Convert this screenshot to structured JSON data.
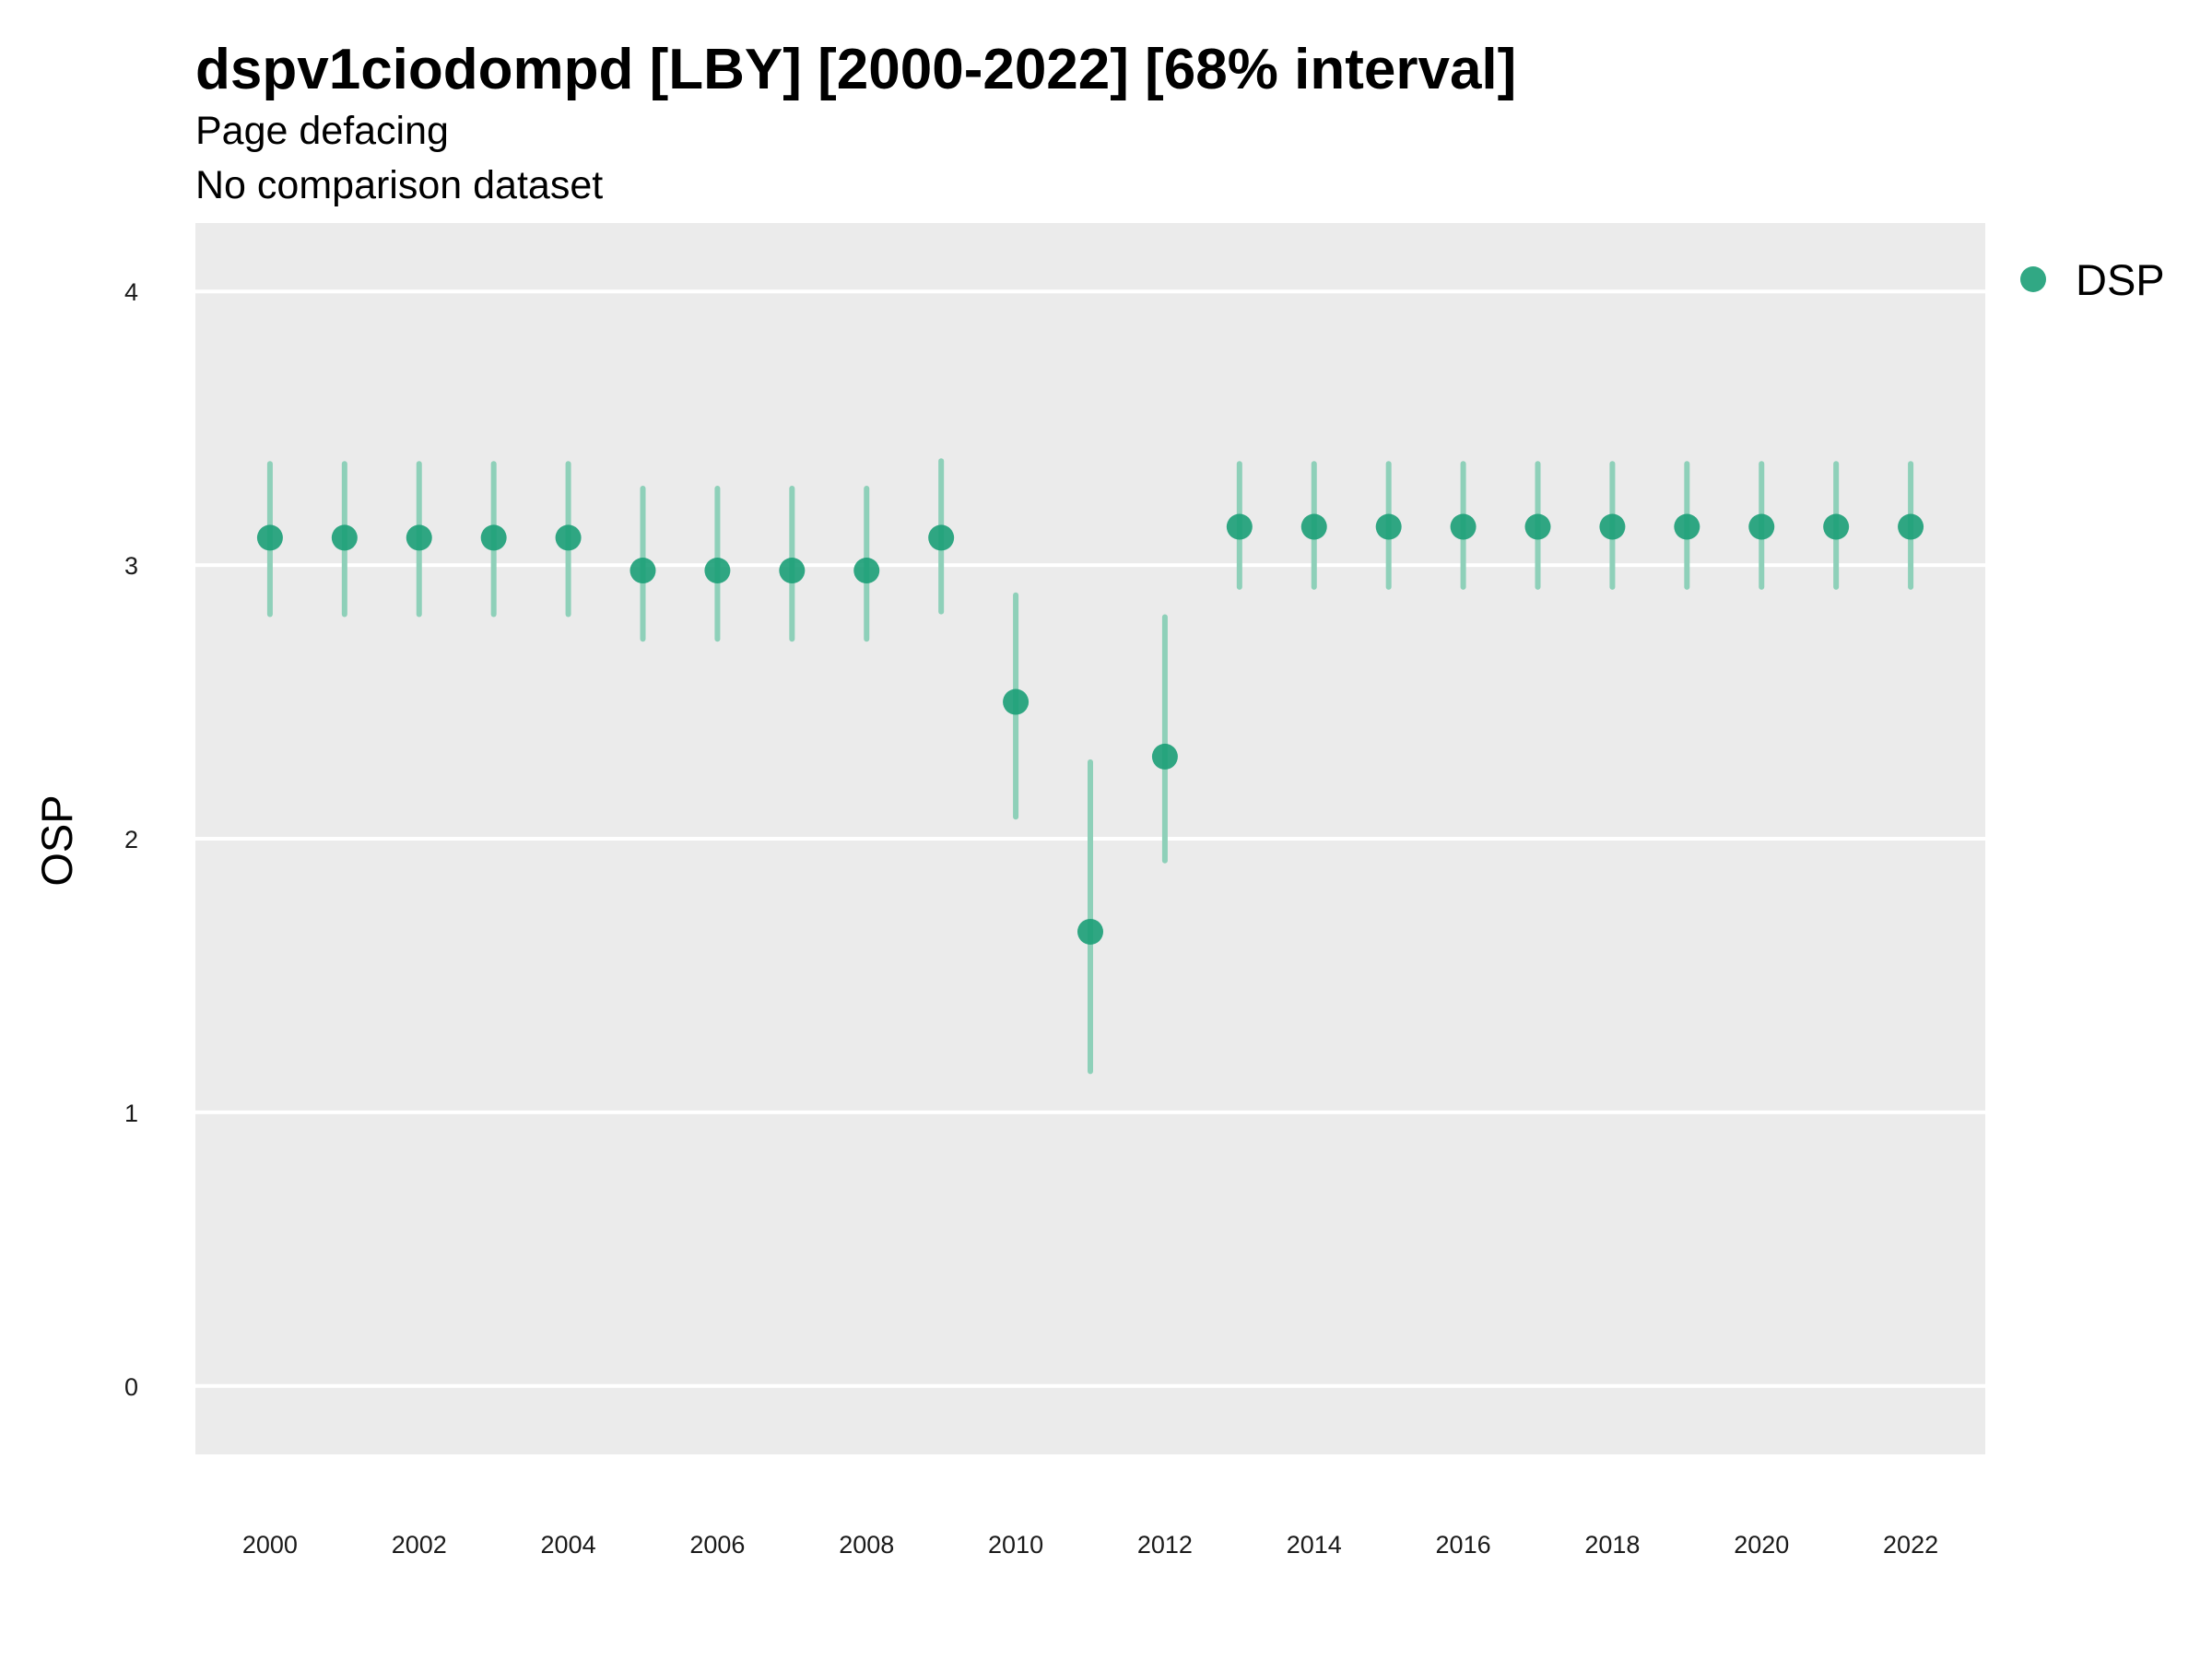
{
  "chart_data": {
    "type": "scatter",
    "title": "dspv1ciodompd [LBY] [2000-2022] [68% interval]",
    "subtitles": [
      "Page defacing",
      "No comparison dataset"
    ],
    "xlabel": "",
    "ylabel": "OSP",
    "xlim": [
      1999,
      2023
    ],
    "ylim": [
      -0.25,
      4.25
    ],
    "x_ticks": [
      2000,
      2002,
      2004,
      2006,
      2008,
      2010,
      2012,
      2014,
      2016,
      2018,
      2020,
      2022
    ],
    "x_tick_labels": [
      "2000",
      "2002",
      "2004",
      "2006",
      "2008",
      "2010",
      "2012",
      "2014",
      "2016",
      "2018",
      "2020",
      "2022"
    ],
    "y_ticks": [
      0,
      1,
      2,
      3,
      4
    ],
    "y_tick_labels": [
      "0",
      "1",
      "2",
      "3",
      "4"
    ],
    "grid": true,
    "legend_position": "right",
    "colors": {
      "background": "#EBEBEB",
      "grid": "#FFFFFF",
      "point": "#1B9E77",
      "interval": "#8ED0B9"
    },
    "series": [
      {
        "name": "DSP",
        "x": [
          2000,
          2001,
          2002,
          2003,
          2004,
          2005,
          2006,
          2007,
          2008,
          2009,
          2010,
          2011,
          2012,
          2013,
          2014,
          2015,
          2016,
          2017,
          2018,
          2019,
          2020,
          2021,
          2022
        ],
        "values": [
          3.1,
          3.1,
          3.1,
          3.1,
          3.1,
          2.98,
          2.98,
          2.98,
          2.98,
          3.1,
          2.5,
          1.66,
          2.3,
          3.14,
          3.14,
          3.14,
          3.14,
          3.14,
          3.14,
          3.14,
          3.14,
          3.14,
          3.14
        ],
        "lower": [
          2.82,
          2.82,
          2.82,
          2.82,
          2.82,
          2.73,
          2.73,
          2.73,
          2.73,
          2.83,
          2.08,
          1.15,
          1.92,
          2.92,
          2.92,
          2.92,
          2.92,
          2.92,
          2.92,
          2.92,
          2.92,
          2.92,
          2.92
        ],
        "upper": [
          3.37,
          3.37,
          3.37,
          3.37,
          3.37,
          3.28,
          3.28,
          3.28,
          3.28,
          3.38,
          2.89,
          2.28,
          2.81,
          3.37,
          3.37,
          3.37,
          3.37,
          3.37,
          3.37,
          3.37,
          3.37,
          3.37,
          3.37
        ]
      }
    ]
  }
}
